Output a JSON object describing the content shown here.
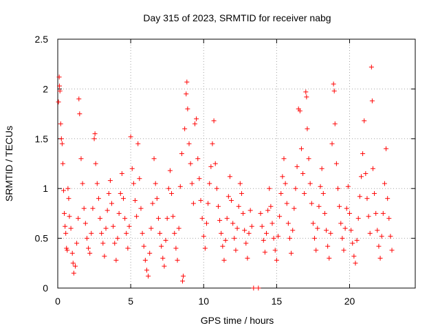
{
  "chart_data": {
    "type": "scatter",
    "title": "Day 315 of 2023, SRMTID for receiver nabg",
    "xlabel": "GPS time / hours",
    "ylabel": "SRMTID / TECUs",
    "xlim": [
      0,
      24.5
    ],
    "ylim": [
      0,
      2.5
    ],
    "xticks": [
      0,
      5,
      10,
      15,
      20
    ],
    "yticks": [
      0,
      0.5,
      1,
      1.5,
      2,
      2.5
    ],
    "xtick_labels": [
      "0",
      "5",
      "10",
      "15",
      "20"
    ],
    "ytick_labels": [
      "0",
      "0.5",
      "1",
      "1.5",
      "2",
      "2.5"
    ],
    "grid": true,
    "marker": "plus",
    "color": "#ff0000",
    "series": [
      {
        "name": "SRMTID",
        "points": [
          [
            0.05,
            1.87
          ],
          [
            0.1,
            2.12
          ],
          [
            0.12,
            2.03
          ],
          [
            0.15,
            1.98
          ],
          [
            0.2,
            1.65
          ],
          [
            0.25,
            1.5
          ],
          [
            0.3,
            1.45
          ],
          [
            0.35,
            1.25
          ],
          [
            0.4,
            0.98
          ],
          [
            0.45,
            0.75
          ],
          [
            0.5,
            0.62
          ],
          [
            0.55,
            0.55
          ],
          [
            0.6,
            0.4
          ],
          [
            0.65,
            0.38
          ],
          [
            0.7,
            1.0
          ],
          [
            0.75,
            0.9
          ],
          [
            0.8,
            0.72
          ],
          [
            0.9,
            0.6
          ],
          [
            1.0,
            0.35
          ],
          [
            1.05,
            0.25
          ],
          [
            1.1,
            0.15
          ],
          [
            1.2,
            0.22
          ],
          [
            1.3,
            0.45
          ],
          [
            1.4,
            0.7
          ],
          [
            1.45,
            1.9
          ],
          [
            1.5,
            1.75
          ],
          [
            1.6,
            1.3
          ],
          [
            1.7,
            1.05
          ],
          [
            1.8,
            0.8
          ],
          [
            1.9,
            0.65
          ],
          [
            2.0,
            0.5
          ],
          [
            2.1,
            0.4
          ],
          [
            2.2,
            0.35
          ],
          [
            2.3,
            0.55
          ],
          [
            2.4,
            0.8
          ],
          [
            2.5,
            1.5
          ],
          [
            2.55,
            1.55
          ],
          [
            2.6,
            1.25
          ],
          [
            2.7,
            1.05
          ],
          [
            2.8,
            0.9
          ],
          [
            2.9,
            0.7
          ],
          [
            3.0,
            0.55
          ],
          [
            3.1,
            0.45
          ],
          [
            3.2,
            0.32
          ],
          [
            3.3,
            0.6
          ],
          [
            3.4,
            0.78
          ],
          [
            3.5,
            0.95
          ],
          [
            3.6,
            1.08
          ],
          [
            3.7,
            0.85
          ],
          [
            3.8,
            0.62
          ],
          [
            3.9,
            0.45
          ],
          [
            4.0,
            0.28
          ],
          [
            4.1,
            0.5
          ],
          [
            4.2,
            0.75
          ],
          [
            4.3,
            0.95
          ],
          [
            4.4,
            1.15
          ],
          [
            4.5,
            0.9
          ],
          [
            4.6,
            0.7
          ],
          [
            4.7,
            0.55
          ],
          [
            4.8,
            0.4
          ],
          [
            4.9,
            0.62
          ],
          [
            5.0,
            1.52
          ],
          [
            5.1,
            1.2
          ],
          [
            5.2,
            1.05
          ],
          [
            5.3,
            0.88
          ],
          [
            5.4,
            0.72
          ],
          [
            5.5,
            1.45
          ],
          [
            5.6,
            1.1
          ],
          [
            5.7,
            0.8
          ],
          [
            5.8,
            0.55
          ],
          [
            5.9,
            0.42
          ],
          [
            6.0,
            0.28
          ],
          [
            6.1,
            0.18
          ],
          [
            6.2,
            0.12
          ],
          [
            6.3,
            0.35
          ],
          [
            6.4,
            0.6
          ],
          [
            6.5,
            0.85
          ],
          [
            6.6,
            1.3
          ],
          [
            6.7,
            1.05
          ],
          [
            6.8,
            0.9
          ],
          [
            6.9,
            0.7
          ],
          [
            7.0,
            0.55
          ],
          [
            7.1,
            0.42
          ],
          [
            7.2,
            0.3
          ],
          [
            7.3,
            0.22
          ],
          [
            7.4,
            0.48
          ],
          [
            7.5,
            0.7
          ],
          [
            7.6,
            1.0
          ],
          [
            7.7,
            1.18
          ],
          [
            7.8,
            0.95
          ],
          [
            7.9,
            0.72
          ],
          [
            8.0,
            0.55
          ],
          [
            8.1,
            0.4
          ],
          [
            8.2,
            0.28
          ],
          [
            8.3,
            0.6
          ],
          [
            8.4,
            1.02
          ],
          [
            8.5,
            1.35
          ],
          [
            8.55,
            0.07
          ],
          [
            8.6,
            0.12
          ],
          [
            8.7,
            1.6
          ],
          [
            8.8,
            1.95
          ],
          [
            8.85,
            2.07
          ],
          [
            8.9,
            1.8
          ],
          [
            9.0,
            1.45
          ],
          [
            9.1,
            1.25
          ],
          [
            9.2,
            1.05
          ],
          [
            9.3,
            0.85
          ],
          [
            9.4,
            1.65
          ],
          [
            9.5,
            1.7
          ],
          [
            9.6,
            1.3
          ],
          [
            9.7,
            1.1
          ],
          [
            9.8,
            0.88
          ],
          [
            9.9,
            0.7
          ],
          [
            10.0,
            0.52
          ],
          [
            10.1,
            0.4
          ],
          [
            10.2,
            0.65
          ],
          [
            10.3,
            0.85
          ],
          [
            10.4,
            1.05
          ],
          [
            10.5,
            1.22
          ],
          [
            10.6,
            1.45
          ],
          [
            10.7,
            1.68
          ],
          [
            10.8,
            1.25
          ],
          [
            10.9,
            1.0
          ],
          [
            11.0,
            0.82
          ],
          [
            11.1,
            0.68
          ],
          [
            11.2,
            0.55
          ],
          [
            11.3,
            0.42
          ],
          [
            11.4,
            0.28
          ],
          [
            11.5,
            0.48
          ],
          [
            11.6,
            0.7
          ],
          [
            11.7,
            0.92
          ],
          [
            11.8,
            1.12
          ],
          [
            11.9,
            0.88
          ],
          [
            12.0,
            0.65
          ],
          [
            12.1,
            0.5
          ],
          [
            12.2,
            0.38
          ],
          [
            12.3,
            0.6
          ],
          [
            12.4,
            0.82
          ],
          [
            12.5,
            1.05
          ],
          [
            12.6,
            0.95
          ],
          [
            12.7,
            0.75
          ],
          [
            12.8,
            0.58
          ],
          [
            12.9,
            0.45
          ],
          [
            13.0,
            0.3
          ],
          [
            13.1,
            0.55
          ],
          [
            13.2,
            0.78
          ],
          [
            13.3,
            0.62
          ],
          [
            13.42,
            0.0
          ],
          [
            13.75,
            0.0
          ],
          [
            13.9,
            0.75
          ],
          [
            14.0,
            0.62
          ],
          [
            14.1,
            0.48
          ],
          [
            14.2,
            0.36
          ],
          [
            14.3,
            0.55
          ],
          [
            14.4,
            0.78
          ],
          [
            14.5,
            1.0
          ],
          [
            14.6,
            0.82
          ],
          [
            14.7,
            0.65
          ],
          [
            14.8,
            0.5
          ],
          [
            14.9,
            0.38
          ],
          [
            15.0,
            0.28
          ],
          [
            15.1,
            0.52
          ],
          [
            15.2,
            0.72
          ],
          [
            15.3,
            0.95
          ],
          [
            15.4,
            1.12
          ],
          [
            15.5,
            1.3
          ],
          [
            15.6,
            1.05
          ],
          [
            15.7,
            0.85
          ],
          [
            15.8,
            0.65
          ],
          [
            15.9,
            0.5
          ],
          [
            16.0,
            0.35
          ],
          [
            16.1,
            0.58
          ],
          [
            16.2,
            0.8
          ],
          [
            16.3,
            1.0
          ],
          [
            16.4,
            1.22
          ],
          [
            16.5,
            1.8
          ],
          [
            16.6,
            1.78
          ],
          [
            16.7,
            1.4
          ],
          [
            16.8,
            1.15
          ],
          [
            16.9,
            0.95
          ],
          [
            17.0,
            1.97
          ],
          [
            17.05,
            1.92
          ],
          [
            17.1,
            1.6
          ],
          [
            17.2,
            1.3
          ],
          [
            17.3,
            1.05
          ],
          [
            17.4,
            0.85
          ],
          [
            17.5,
            0.65
          ],
          [
            17.6,
            0.5
          ],
          [
            17.7,
            0.38
          ],
          [
            17.8,
            0.6
          ],
          [
            17.9,
            0.82
          ],
          [
            18.0,
            1.02
          ],
          [
            18.1,
            1.2
          ],
          [
            18.2,
            0.95
          ],
          [
            18.3,
            0.75
          ],
          [
            18.4,
            0.58
          ],
          [
            18.5,
            0.42
          ],
          [
            18.6,
            0.3
          ],
          [
            18.7,
            0.55
          ],
          [
            18.8,
            1.45
          ],
          [
            18.9,
            2.05
          ],
          [
            18.95,
            1.98
          ],
          [
            19.0,
            1.65
          ],
          [
            19.1,
            1.25
          ],
          [
            19.2,
            1.0
          ],
          [
            19.3,
            0.82
          ],
          [
            19.4,
            0.65
          ],
          [
            19.5,
            0.5
          ],
          [
            19.6,
            0.38
          ],
          [
            19.7,
            0.6
          ],
          [
            19.8,
            0.8
          ],
          [
            19.9,
            1.02
          ],
          [
            20.0,
            0.75
          ],
          [
            20.1,
            0.58
          ],
          [
            20.2,
            0.45
          ],
          [
            20.3,
            0.32
          ],
          [
            20.4,
            0.25
          ],
          [
            20.5,
            0.48
          ],
          [
            20.6,
            0.7
          ],
          [
            20.7,
            0.92
          ],
          [
            20.8,
            1.12
          ],
          [
            20.9,
            1.35
          ],
          [
            21.0,
            1.68
          ],
          [
            21.1,
            1.15
          ],
          [
            21.2,
            0.9
          ],
          [
            21.3,
            0.72
          ],
          [
            21.4,
            0.55
          ],
          [
            21.5,
            2.22
          ],
          [
            21.55,
            1.88
          ],
          [
            21.6,
            1.2
          ],
          [
            21.7,
            0.95
          ],
          [
            21.8,
            0.75
          ],
          [
            21.9,
            0.58
          ],
          [
            22.0,
            0.42
          ],
          [
            22.1,
            0.3
          ],
          [
            22.2,
            0.52
          ],
          [
            22.3,
            0.75
          ],
          [
            22.4,
            1.05
          ],
          [
            22.5,
            1.4
          ],
          [
            22.6,
            0.9
          ],
          [
            22.7,
            0.7
          ],
          [
            22.8,
            0.52
          ],
          [
            22.9,
            0.38
          ]
        ]
      }
    ]
  }
}
